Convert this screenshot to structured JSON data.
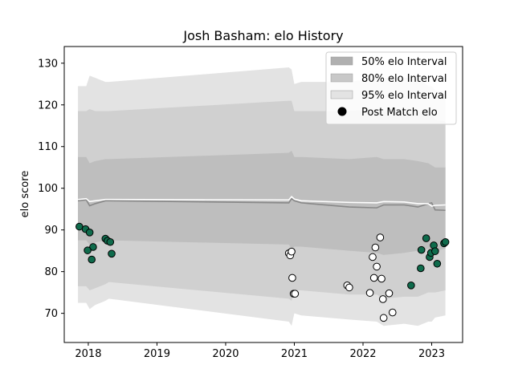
{
  "chart_data": {
    "type": "scatter",
    "title": "Josh Basham: elo History",
    "xlabel": "",
    "ylabel": "elo score",
    "xlim": [
      2017.65,
      2023.45
    ],
    "ylim": [
      63.0,
      134.0
    ],
    "x_ticks": [
      {
        "value": 2018,
        "label": "2018"
      },
      {
        "value": 2019,
        "label": "2019"
      },
      {
        "value": 2020,
        "label": "2020"
      },
      {
        "value": 2021,
        "label": "2021"
      },
      {
        "value": 2022,
        "label": "2022"
      },
      {
        "value": 2023,
        "label": "2023"
      }
    ],
    "y_ticks": [
      {
        "value": 70,
        "label": "70"
      },
      {
        "value": 80,
        "label": "80"
      },
      {
        "value": 90,
        "label": "90"
      },
      {
        "value": 100,
        "label": "100"
      },
      {
        "value": 110,
        "label": "110"
      },
      {
        "value": 120,
        "label": "120"
      },
      {
        "value": 130,
        "label": "130"
      }
    ],
    "grid": false,
    "legend_position": "top-right",
    "legend": [
      {
        "label": "50% elo Interval",
        "kind": "band",
        "color": "#b0b0b0"
      },
      {
        "label": "80% elo Interval",
        "kind": "band",
        "color": "#c8c8c8"
      },
      {
        "label": "95% elo Interval",
        "kind": "band",
        "color": "#e3e3e3"
      },
      {
        "label": "Post Match elo",
        "kind": "marker",
        "color": "#000000"
      }
    ],
    "colors": {
      "band95": "#e3e3e3",
      "band80": "#d0d0d0",
      "band50": "#bebebe",
      "median_line": "#888888",
      "mean_line": "#ffffff",
      "point_highlight": "#0f6b4c",
      "point_plain": "#ffffff",
      "point_edge": "#000000"
    },
    "bands": {
      "x": [
        2017.85,
        2017.97,
        2018.02,
        2018.1,
        2018.25,
        2018.3,
        2020.92,
        2020.96,
        2021.0,
        2021.1,
        2021.8,
        2022.2,
        2022.3,
        2022.6,
        2022.8,
        2022.95,
        2023.0,
        2023.05,
        2023.2
      ],
      "lo95": [
        72.5,
        72.5,
        71.0,
        72.0,
        73.0,
        73.5,
        68.0,
        67.0,
        70.0,
        69.5,
        68.5,
        68.0,
        67.0,
        67.5,
        67.0,
        68.0,
        68.0,
        69.0,
        69.5
      ],
      "hi95": [
        124.5,
        124.5,
        127.0,
        126.5,
        125.5,
        125.5,
        129.0,
        128.5,
        125.0,
        125.5,
        125.5,
        126.5,
        126.5,
        126.5,
        126.5,
        124.5,
        124.5,
        123.5,
        123.0
      ],
      "lo80": [
        76.5,
        76.5,
        75.5,
        76.0,
        77.0,
        77.5,
        73.5,
        73.0,
        75.5,
        75.5,
        74.5,
        74.5,
        73.5,
        74.0,
        74.0,
        75.0,
        75.0,
        75.0,
        75.5
      ],
      "hi80": [
        118.5,
        118.5,
        119.0,
        118.5,
        118.5,
        118.5,
        121.0,
        121.0,
        118.5,
        118.5,
        118.5,
        119.0,
        118.5,
        118.5,
        118.5,
        117.5,
        117.5,
        116.5,
        116.0
      ],
      "lo50": [
        87.5,
        87.5,
        86.5,
        87.0,
        87.5,
        87.5,
        86.5,
        85.5,
        86.0,
        86.0,
        85.0,
        84.5,
        84.0,
        84.5,
        85.0,
        85.5,
        85.0,
        85.0,
        85.5
      ],
      "hi50": [
        107.5,
        107.5,
        106.0,
        106.5,
        107.0,
        107.0,
        108.5,
        109.0,
        107.5,
        107.5,
        107.0,
        107.5,
        107.0,
        107.0,
        106.5,
        106.0,
        105.5,
        105.0,
        105.0
      ],
      "median": [
        97.0,
        97.2,
        95.8,
        96.3,
        97.0,
        97.0,
        96.5,
        97.5,
        97.0,
        96.5,
        95.5,
        95.3,
        96.0,
        96.0,
        95.5,
        96.3,
        96.5,
        94.8,
        94.7
      ],
      "mean": [
        97.3,
        97.5,
        96.8,
        97.0,
        97.3,
        97.3,
        97.2,
        98.0,
        97.4,
        97.0,
        96.6,
        96.5,
        96.8,
        96.7,
        96.3,
        96.3,
        95.7,
        95.9,
        96.0
      ]
    },
    "series": [
      {
        "x": [
          2017.87,
          2017.96,
          2018.02,
          2018.07,
          2017.99,
          2018.05,
          2018.25,
          2018.28,
          2018.32,
          2018.34,
          2022.85,
          2022.92,
          2022.97,
          2022.99,
          2023.03,
          2023.05,
          2023.08,
          2023.18,
          2023.2,
          2022.84,
          2022.7
        ],
        "y": [
          90.8,
          90.2,
          89.4,
          85.9,
          85.1,
          82.9,
          87.9,
          87.4,
          87.1,
          84.3,
          85.2,
          88.0,
          83.5,
          84.5,
          86.3,
          84.9,
          81.9,
          86.8,
          87.1,
          80.8,
          76.7
        ],
        "style": "highlight"
      },
      {
        "x": [
          2020.92,
          2020.94,
          2020.96,
          2020.97,
          2020.99,
          2021.01,
          2021.77,
          2021.8,
          2022.1,
          2022.14,
          2022.16,
          2022.18,
          2022.2,
          2022.25,
          2022.27,
          2022.29,
          2022.3,
          2022.38,
          2022.43
        ],
        "y": [
          84.4,
          83.9,
          84.8,
          78.5,
          74.7,
          74.7,
          76.7,
          76.2,
          74.9,
          83.5,
          78.5,
          85.8,
          81.2,
          88.2,
          78.3,
          73.4,
          68.9,
          74.8,
          70.2
        ],
        "style": "plain"
      }
    ]
  }
}
